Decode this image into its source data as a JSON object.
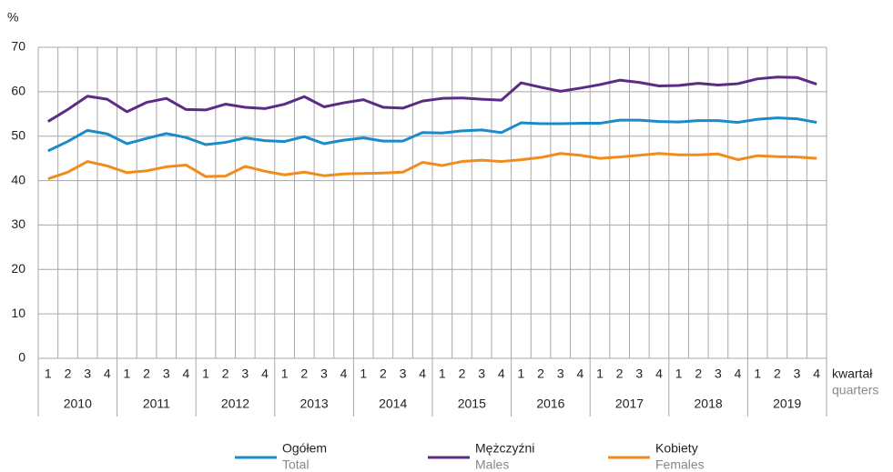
{
  "chart_data": {
    "type": "line",
    "y_label": "%",
    "x_label": "kwartał",
    "x_label_en": "quarters",
    "categories": [
      "1",
      "2",
      "3",
      "4",
      "1",
      "2",
      "3",
      "4",
      "1",
      "2",
      "3",
      "4",
      "1",
      "2",
      "3",
      "4",
      "1",
      "2",
      "3",
      "4",
      "1",
      "2",
      "3",
      "4",
      "1",
      "2",
      "3",
      "4",
      "1",
      "2",
      "3",
      "4",
      "1",
      "2",
      "3",
      "4",
      "1",
      "2",
      "3",
      "4"
    ],
    "years": [
      "2010",
      "2011",
      "2012",
      "2013",
      "2014",
      "2015",
      "2016",
      "2017",
      "2018",
      "2019"
    ],
    "series": [
      {
        "name": "Ogółem",
        "name_en": "Total",
        "color": "#1a8bc9",
        "values": [
          46.7,
          48.8,
          51.3,
          50.5,
          48.3,
          49.5,
          50.6,
          49.7,
          48.1,
          48.6,
          49.6,
          49.0,
          48.8,
          49.9,
          48.3,
          49.1,
          49.6,
          48.9,
          48.9,
          50.8,
          50.7,
          51.2,
          51.4,
          50.8,
          53.0,
          52.8,
          52.8,
          52.9,
          52.9,
          53.6,
          53.6,
          53.3,
          53.2,
          53.5,
          53.5,
          53.1,
          53.8,
          54.1,
          53.9,
          53.1
        ]
      },
      {
        "name": "Mężczyźni",
        "name_en": "Males",
        "color": "#5b2c86",
        "values": [
          53.3,
          56.0,
          59.0,
          58.3,
          55.5,
          57.6,
          58.5,
          56.0,
          55.9,
          57.2,
          56.5,
          56.2,
          57.2,
          58.9,
          56.6,
          57.5,
          58.2,
          56.5,
          56.3,
          57.9,
          58.5,
          58.6,
          58.3,
          58.1,
          62.0,
          61.0,
          60.1,
          60.8,
          61.6,
          62.6,
          62.1,
          61.3,
          61.4,
          61.9,
          61.5,
          61.8,
          62.9,
          63.3,
          63.2,
          61.7
        ]
      },
      {
        "name": "Kobiety",
        "name_en": "Females",
        "color": "#f28b1e",
        "values": [
          40.4,
          41.9,
          44.3,
          43.3,
          41.8,
          42.2,
          43.1,
          43.5,
          40.9,
          41.0,
          43.2,
          42.1,
          41.3,
          41.9,
          41.1,
          41.5,
          41.6,
          41.7,
          41.9,
          44.1,
          43.4,
          44.3,
          44.6,
          44.3,
          44.7,
          45.2,
          46.1,
          45.7,
          45.0,
          45.3,
          45.7,
          46.1,
          45.8,
          45.8,
          46.0,
          44.7,
          45.6,
          45.4,
          45.3,
          45.0
        ]
      }
    ],
    "ylim": [
      0,
      70
    ],
    "yticks": [
      0,
      10,
      20,
      30,
      40,
      50,
      60,
      70
    ],
    "grid": true
  }
}
